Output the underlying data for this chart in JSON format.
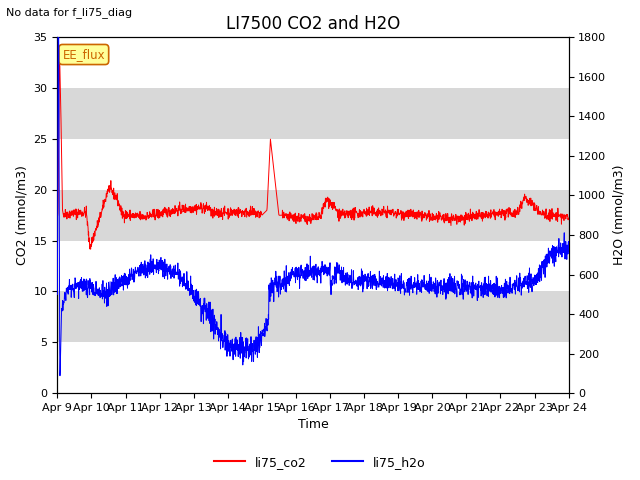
{
  "title": "LI7500 CO2 and H2O",
  "subtitle": "No data for f_li75_diag",
  "xlabel": "Time",
  "ylabel_left": "CO2 (mmol/m3)",
  "ylabel_right": "H2O (mmol/m3)",
  "ylim_left": [
    0,
    35
  ],
  "ylim_right": [
    0,
    1800
  ],
  "yticks_left": [
    0,
    5,
    10,
    15,
    20,
    25,
    30,
    35
  ],
  "yticks_right": [
    0,
    200,
    400,
    600,
    800,
    1000,
    1200,
    1400,
    1600,
    1800
  ],
  "xtick_labels": [
    "Apr 9",
    "Apr 10",
    "Apr 11",
    "Apr 12",
    "Apr 13",
    "Apr 14",
    "Apr 15",
    "Apr 16",
    "Apr 17",
    "Apr 18",
    "Apr 19",
    "Apr 20",
    "Apr 21",
    "Apr 22",
    "Apr 23",
    "Apr 24"
  ],
  "co2_color": "#ff0000",
  "h2o_color": "#0000ff",
  "legend_box_label": "EE_flux",
  "background_color": "#ffffff",
  "plot_bg_color": "#d8d8d8",
  "white_band_alpha": 1.0
}
